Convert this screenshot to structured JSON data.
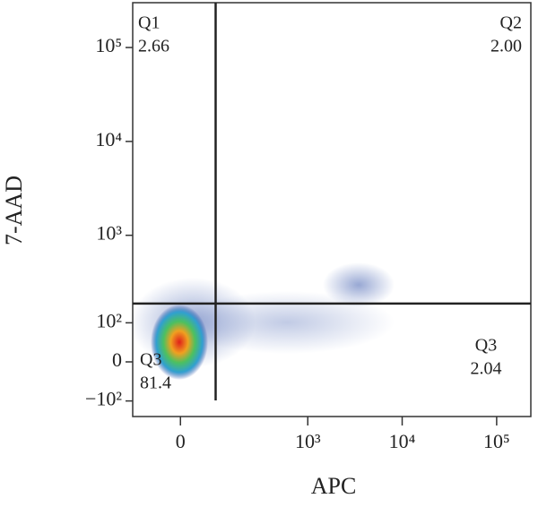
{
  "chart_data": {
    "type": "flow-cytometry",
    "xlabel": "APC",
    "ylabel": "7-AAD",
    "scale": "biexponential",
    "xlim": [
      -130,
      230000
    ],
    "ylim": [
      -160,
      300000
    ],
    "xticks": [
      0,
      {
        "value": 1000,
        "label": "10³"
      },
      {
        "value": 10000,
        "label": "10⁴"
      },
      {
        "value": 100000,
        "label": "10⁵"
      }
    ],
    "yticks": [
      {
        "value": -100,
        "label": "−10²"
      },
      0,
      {
        "value": 100,
        "label": "10²"
      },
      {
        "value": 1000,
        "label": "10³"
      },
      {
        "value": 10000,
        "label": "10⁴"
      },
      {
        "value": 100000,
        "label": "10⁵"
      }
    ],
    "gate": {
      "x": 87,
      "y": 177
    },
    "quadrants": [
      {
        "name": "Q1",
        "value": 2.66,
        "position": "top-left"
      },
      {
        "name": "Q2",
        "value": 2,
        "value_label": "2.00",
        "position": "top-right"
      },
      {
        "name": "Q3",
        "value": 2.04,
        "position": "bottom-right"
      },
      {
        "name": "Q3",
        "value": 81.4,
        "position": "bottom-left"
      }
    ]
  }
}
